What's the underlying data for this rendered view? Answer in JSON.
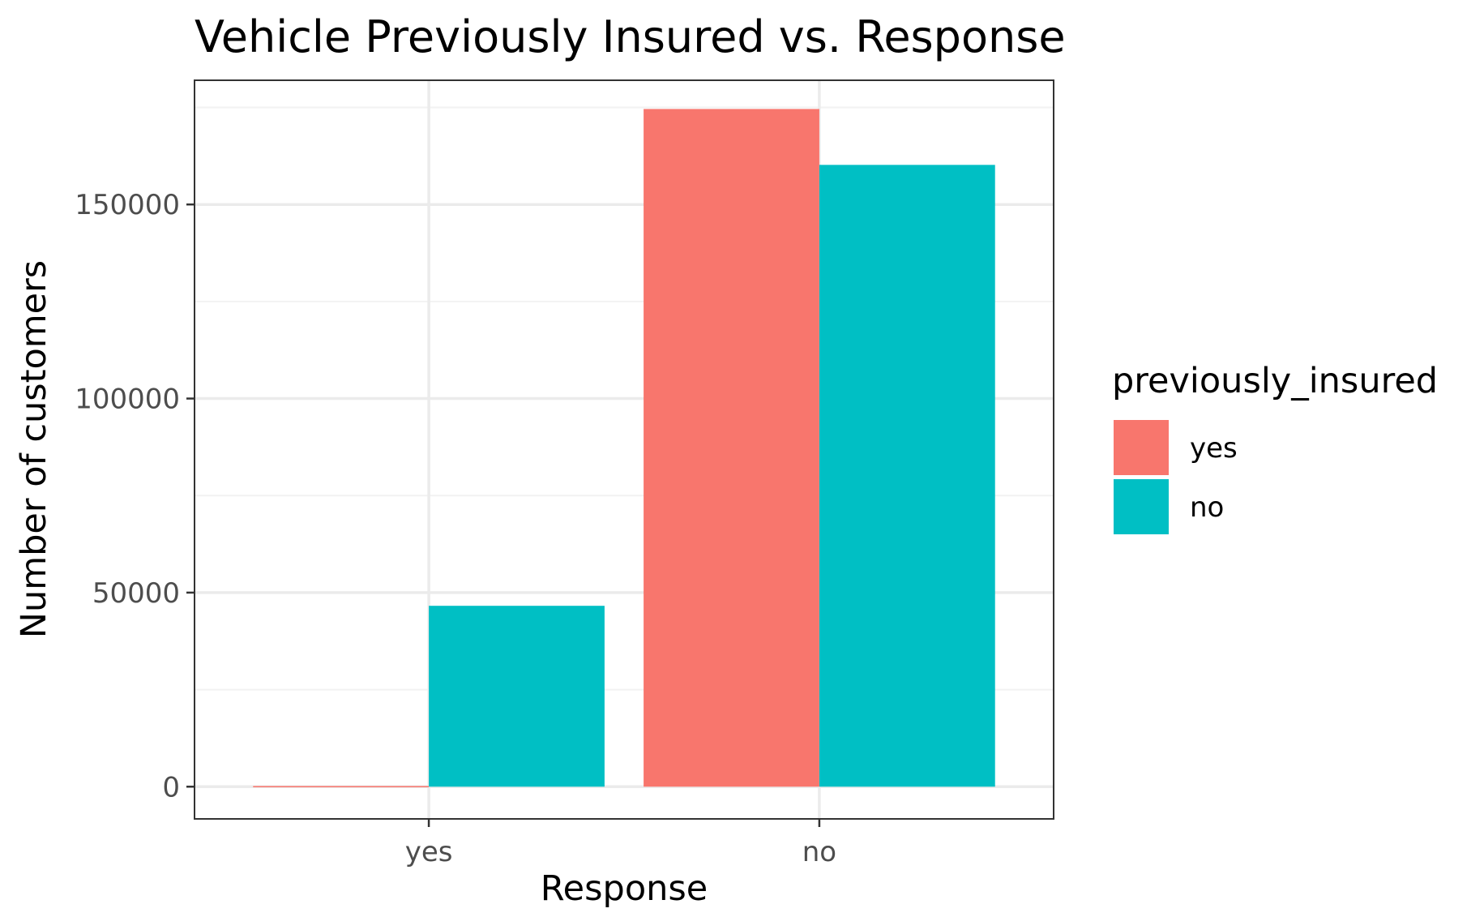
{
  "chart_data": {
    "type": "bar",
    "title": "Vehicle Previously Insured vs. Response",
    "xlabel": "Response",
    "ylabel": "Number of customers",
    "categories": [
      "yes",
      "no"
    ],
    "series": [
      {
        "name": "yes",
        "values": [
          160,
          174600
        ],
        "color": "#f8766d"
      },
      {
        "name": "no",
        "values": [
          46600,
          160200
        ],
        "color": "#00bfc4"
      }
    ],
    "ylim": [
      -8300,
      182000
    ],
    "yticks": [
      0,
      50000,
      100000,
      150000
    ],
    "ytick_labels": [
      "0",
      "50000",
      "100000",
      "150000"
    ],
    "grid": true,
    "legend": {
      "title": "previously_insured",
      "position": "right"
    }
  }
}
